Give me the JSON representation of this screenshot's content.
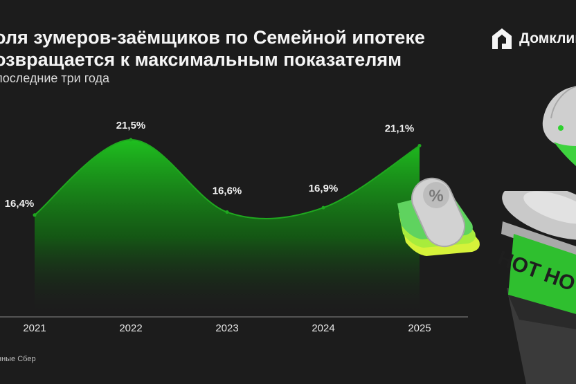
{
  "header": {
    "title_line1": "оля зумеров-заёмщиков по Семейной ипотеке",
    "title_line2": "озвращается к максимальным показателям",
    "subtitle": "последние три года"
  },
  "logo": {
    "text": "Домклик"
  },
  "footer": {
    "source": "нные Сбер"
  },
  "decor": {
    "cup_text": "HOT HOT",
    "percent_symbol": "%"
  },
  "colors": {
    "accent": "#2fd12f",
    "line": "#1fa81f",
    "background": "#1c1c1c"
  },
  "chart_data": {
    "type": "area",
    "x": [
      "2021",
      "2022",
      "2023",
      "2024",
      "2025"
    ],
    "series": [
      {
        "values": [
          16.4,
          21.5,
          16.6,
          16.9,
          21.1
        ]
      }
    ],
    "data_labels": [
      "16,4%",
      "21,5%",
      "16,6%",
      "16,9%",
      "21,1%"
    ],
    "xlabel": "",
    "ylabel": "",
    "ylim": [
      9.5,
      23.0
    ],
    "grid": false,
    "legend": "none"
  }
}
